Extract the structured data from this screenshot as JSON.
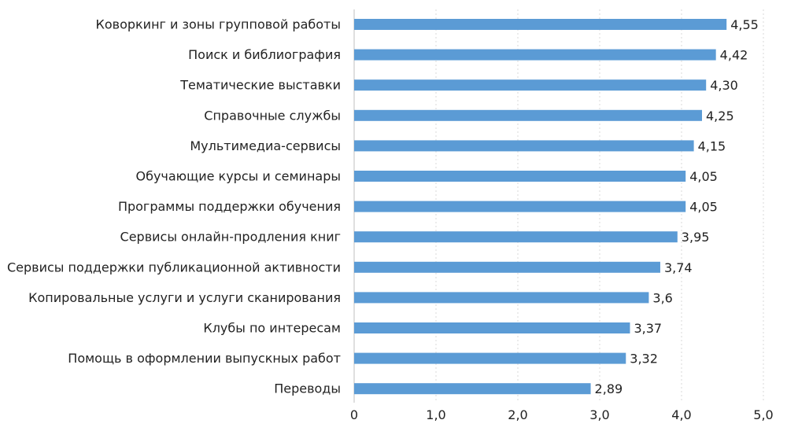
{
  "chart_data": {
    "type": "bar",
    "orientation": "horizontal",
    "categories": [
      "Коворкинг и зоны групповой работы",
      "Поиск и библиография",
      "Тематические выставки",
      "Справочные службы",
      "Мультимедиа-сервисы",
      "Обучающие курсы и семинары",
      "Программы поддержки обучения",
      "Сервисы онлайн-продления книг",
      "Сервисы поддержки публикационной активности",
      "Копировальные услуги и услуги сканирования",
      "Клубы по интересам",
      "Помощь в оформлении выпускных работ",
      "Переводы"
    ],
    "values": [
      4.55,
      4.42,
      4.3,
      4.25,
      4.15,
      4.05,
      4.05,
      3.95,
      3.74,
      3.6,
      3.37,
      3.32,
      2.89
    ],
    "value_labels": [
      "4,55",
      "4,42",
      "4,30",
      "4,25",
      "4,15",
      "4,05",
      "4,05",
      "3,95",
      "3,74",
      "3,6",
      "3,37",
      "3,32",
      "2,89"
    ],
    "xlim": [
      0,
      5
    ],
    "x_ticks": [
      0,
      1,
      2,
      3,
      4,
      5
    ],
    "x_tick_labels": [
      "0",
      "1,0",
      "2,0",
      "3,0",
      "4,0",
      "5,0"
    ],
    "title": "",
    "xlabel": "",
    "ylabel": "",
    "grid": "vertical dashed",
    "bar_color": "#5b9bd5"
  }
}
